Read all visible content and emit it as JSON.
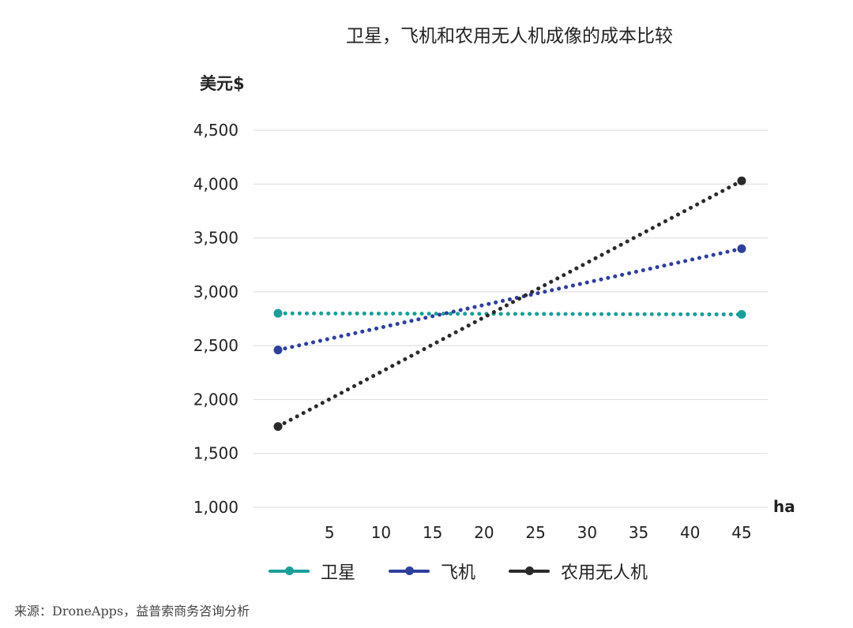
{
  "chart_data": {
    "type": "line",
    "title": "卫星，飞机和农用无人机成像的成本比较",
    "ylabel": "美元$",
    "xlabel": "ha",
    "ylim": [
      1000,
      4500
    ],
    "y_ticks": [
      1000,
      1500,
      2000,
      2500,
      3000,
      3500,
      4000,
      4500
    ],
    "y_tick_labels": [
      "1,000",
      "1,500",
      "2,000",
      "2,500",
      "3,000",
      "3,500",
      "4,000",
      "4,500"
    ],
    "xlim": [
      0,
      45
    ],
    "x_ticks": [
      5,
      10,
      15,
      20,
      25,
      30,
      35,
      40,
      45
    ],
    "x_tick_labels": [
      "5",
      "10",
      "15",
      "20",
      "25",
      "30",
      "35",
      "40",
      "45"
    ],
    "grid": true,
    "legend_position": "bottom",
    "series": [
      {
        "name": "卫星",
        "color": "#1a9e9a",
        "x": [
          0,
          45
        ],
        "values": [
          2800,
          2790
        ]
      },
      {
        "name": "飞机",
        "color": "#2e3f9c",
        "x": [
          0,
          45
        ],
        "values": [
          2460,
          3400
        ]
      },
      {
        "name": "农用无人机",
        "color": "#2a2a2a",
        "x": [
          0,
          45
        ],
        "values": [
          1750,
          4030
        ]
      }
    ]
  },
  "source": "来源：DroneApps，益普索商务咨询分析"
}
